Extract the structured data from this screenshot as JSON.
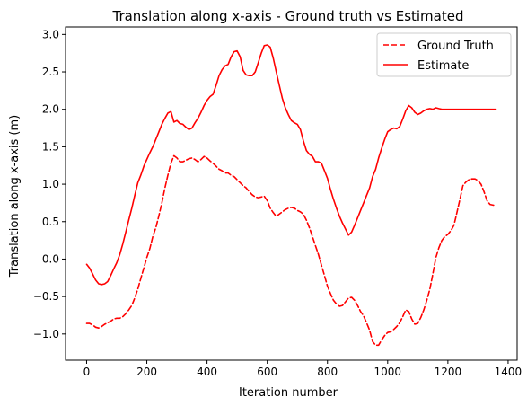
{
  "chart_data": {
    "type": "line",
    "title": "Translation along x-axis - Ground truth vs Estimated",
    "xlabel": "Iteration number",
    "ylabel": "Translation along x-axis (m)",
    "xlim": [
      -70,
      1430
    ],
    "ylim": [
      -1.35,
      3.1
    ],
    "xticks": [
      0,
      200,
      400,
      600,
      800,
      1000,
      1200,
      1400
    ],
    "xtick_labels": [
      "0",
      "200",
      "400",
      "600",
      "800",
      "1000",
      "1200",
      "1400"
    ],
    "yticks": [
      -1.0,
      -0.5,
      0.0,
      0.5,
      1.0,
      1.5,
      2.0,
      2.5,
      3.0
    ],
    "ytick_labels": [
      "−1.0",
      "−0.5",
      "0.0",
      "0.5",
      "1.0",
      "1.5",
      "2.0",
      "2.5",
      "3.0"
    ],
    "grid": false,
    "legend_position": "upper right",
    "series": [
      {
        "name": "Ground Truth",
        "color": "#ff0000",
        "style": "dashed",
        "x": [
          0,
          10,
          20,
          30,
          40,
          50,
          60,
          70,
          80,
          90,
          100,
          110,
          120,
          130,
          140,
          150,
          160,
          170,
          180,
          190,
          200,
          210,
          220,
          230,
          240,
          250,
          260,
          270,
          280,
          290,
          300,
          310,
          320,
          330,
          340,
          350,
          360,
          370,
          380,
          390,
          400,
          410,
          420,
          430,
          440,
          450,
          460,
          470,
          480,
          490,
          500,
          510,
          520,
          530,
          540,
          550,
          560,
          570,
          580,
          590,
          600,
          610,
          620,
          630,
          640,
          650,
          660,
          670,
          680,
          690,
          700,
          710,
          720,
          730,
          740,
          750,
          760,
          770,
          780,
          790,
          800,
          810,
          820,
          830,
          840,
          850,
          860,
          870,
          880,
          890,
          900,
          910,
          920,
          930,
          940,
          950,
          960,
          970,
          980,
          990,
          1000,
          1010,
          1020,
          1030,
          1040,
          1050,
          1060,
          1070,
          1080,
          1090,
          1100,
          1110,
          1120,
          1130,
          1140,
          1150,
          1160,
          1170,
          1180,
          1190,
          1200,
          1210,
          1220,
          1230,
          1240,
          1250,
          1260,
          1270,
          1280,
          1290,
          1300,
          1310,
          1320,
          1330,
          1340,
          1350,
          1360
        ],
        "y": [
          -0.86,
          -0.86,
          -0.88,
          -0.91,
          -0.92,
          -0.9,
          -0.87,
          -0.85,
          -0.83,
          -0.8,
          -0.79,
          -0.79,
          -0.77,
          -0.73,
          -0.68,
          -0.62,
          -0.52,
          -0.4,
          -0.26,
          -0.12,
          0.02,
          0.14,
          0.3,
          0.42,
          0.58,
          0.75,
          0.95,
          1.12,
          1.28,
          1.38,
          1.35,
          1.3,
          1.3,
          1.32,
          1.34,
          1.35,
          1.33,
          1.3,
          1.33,
          1.37,
          1.35,
          1.31,
          1.28,
          1.24,
          1.2,
          1.18,
          1.15,
          1.15,
          1.12,
          1.1,
          1.06,
          1.02,
          0.98,
          0.95,
          0.9,
          0.86,
          0.83,
          0.82,
          0.83,
          0.84,
          0.78,
          0.68,
          0.62,
          0.57,
          0.6,
          0.63,
          0.66,
          0.68,
          0.69,
          0.68,
          0.65,
          0.63,
          0.6,
          0.52,
          0.42,
          0.3,
          0.18,
          0.06,
          -0.08,
          -0.22,
          -0.36,
          -0.46,
          -0.55,
          -0.6,
          -0.63,
          -0.62,
          -0.57,
          -0.52,
          -0.51,
          -0.55,
          -0.62,
          -0.7,
          -0.76,
          -0.85,
          -0.95,
          -1.1,
          -1.15,
          -1.15,
          -1.08,
          -1.02,
          -0.98,
          -0.97,
          -0.94,
          -0.9,
          -0.85,
          -0.77,
          -0.68,
          -0.7,
          -0.8,
          -0.87,
          -0.86,
          -0.78,
          -0.68,
          -0.55,
          -0.4,
          -0.2,
          0.02,
          0.15,
          0.25,
          0.3,
          0.33,
          0.38,
          0.45,
          0.62,
          0.8,
          0.98,
          1.03,
          1.06,
          1.07,
          1.07,
          1.05,
          1.0,
          0.9,
          0.78,
          0.73,
          0.72,
          0.72
        ]
      },
      {
        "name": "Estimate",
        "color": "#ff0000",
        "style": "solid",
        "x": [
          0,
          10,
          20,
          30,
          40,
          50,
          60,
          70,
          80,
          90,
          100,
          110,
          120,
          130,
          140,
          150,
          160,
          170,
          180,
          190,
          200,
          210,
          220,
          230,
          240,
          250,
          260,
          270,
          280,
          290,
          300,
          310,
          320,
          330,
          340,
          350,
          360,
          370,
          380,
          390,
          400,
          410,
          420,
          430,
          440,
          450,
          460,
          470,
          480,
          490,
          500,
          510,
          520,
          530,
          540,
          550,
          560,
          570,
          580,
          590,
          600,
          610,
          620,
          630,
          640,
          650,
          660,
          670,
          680,
          690,
          700,
          710,
          720,
          730,
          740,
          750,
          760,
          770,
          780,
          790,
          800,
          810,
          820,
          830,
          840,
          850,
          860,
          870,
          880,
          890,
          900,
          910,
          920,
          930,
          940,
          950,
          960,
          970,
          980,
          990,
          1000,
          1010,
          1020,
          1030,
          1040,
          1050,
          1060,
          1070,
          1080,
          1090,
          1100,
          1110,
          1120,
          1130,
          1140,
          1150,
          1160,
          1170,
          1180,
          1190,
          1200,
          1210,
          1220,
          1230,
          1240,
          1250,
          1260,
          1270,
          1280,
          1290,
          1300,
          1310,
          1320,
          1330,
          1340,
          1350,
          1360
        ],
        "y": [
          -0.07,
          -0.12,
          -0.2,
          -0.28,
          -0.33,
          -0.34,
          -0.33,
          -0.3,
          -0.22,
          -0.13,
          -0.05,
          0.06,
          0.2,
          0.36,
          0.52,
          0.68,
          0.85,
          1.02,
          1.12,
          1.24,
          1.33,
          1.42,
          1.5,
          1.6,
          1.7,
          1.8,
          1.88,
          1.95,
          1.97,
          1.83,
          1.85,
          1.81,
          1.8,
          1.76,
          1.73,
          1.75,
          1.82,
          1.88,
          1.96,
          2.05,
          2.12,
          2.17,
          2.2,
          2.32,
          2.45,
          2.53,
          2.58,
          2.6,
          2.7,
          2.77,
          2.78,
          2.7,
          2.52,
          2.46,
          2.45,
          2.45,
          2.5,
          2.62,
          2.75,
          2.85,
          2.86,
          2.83,
          2.68,
          2.5,
          2.32,
          2.15,
          2.02,
          1.93,
          1.85,
          1.82,
          1.8,
          1.73,
          1.58,
          1.45,
          1.4,
          1.37,
          1.3,
          1.3,
          1.28,
          1.18,
          1.08,
          0.93,
          0.8,
          0.68,
          0.57,
          0.48,
          0.4,
          0.32,
          0.36,
          0.45,
          0.55,
          0.65,
          0.75,
          0.85,
          0.95,
          1.1,
          1.2,
          1.35,
          1.48,
          1.6,
          1.7,
          1.73,
          1.75,
          1.74,
          1.77,
          1.87,
          1.98,
          2.05,
          2.02,
          1.96,
          1.93,
          1.95,
          1.98,
          2.0,
          2.01,
          2.0,
          2.02,
          2.01,
          2.0,
          2.0,
          2.0,
          2.0,
          2.0,
          2.0,
          2.0,
          2.0,
          2.0,
          2.0,
          2.0,
          2.0,
          2.0,
          2.0,
          2.0,
          2.0,
          2.0,
          2.0,
          2.0
        ]
      }
    ]
  }
}
